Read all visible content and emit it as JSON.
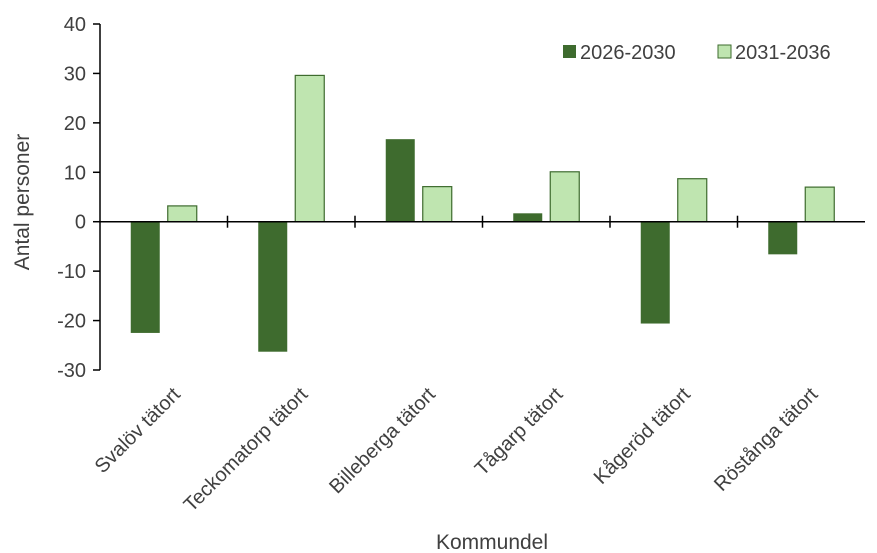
{
  "chart_data": {
    "type": "bar",
    "title": "",
    "xlabel": "Kommundel",
    "ylabel": "Antal personer",
    "categories": [
      "Svalöv tätort",
      "Teckomatorp tätort",
      "Billeberga tätort",
      "Tågarp tätort",
      "Kågeröd tätort",
      "Röstånga tätort"
    ],
    "series": [
      {
        "name": "2026-2030",
        "values": [
          -22.5,
          -26.3,
          16.7,
          1.7,
          -20.6,
          -6.6
        ],
        "color": "#3E6B2E"
      },
      {
        "name": "2031-2036",
        "values": [
          3.2,
          29.6,
          7.1,
          10.1,
          8.7,
          7.0
        ],
        "color": "#BFE5B0"
      }
    ],
    "ylim": [
      -30,
      40
    ],
    "yticks": [
      -30,
      -20,
      -10,
      0,
      10,
      20,
      30,
      40
    ],
    "grid": false,
    "legend": "top-right"
  }
}
